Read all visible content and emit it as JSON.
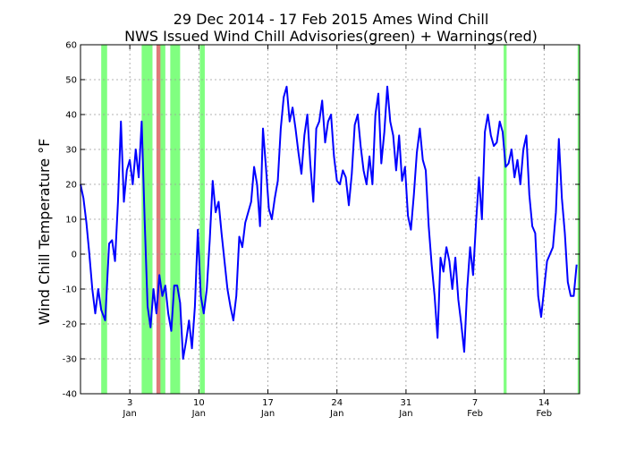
{
  "chart_data": {
    "type": "line",
    "title": "29 Dec 2014 - 17 Feb 2015 Ames Wind Chill",
    "subtitle": "NWS Issued Wind Chill Advisories(green) + Warnings(red)",
    "xlabel": "",
    "ylabel": "Wind Chill Temperature °F",
    "ylim": [
      -40,
      60
    ],
    "yticks": [
      -40,
      -30,
      -20,
      -10,
      0,
      10,
      20,
      30,
      40,
      50,
      60
    ],
    "xlim_days_from_dec29": [
      0,
      50.6
    ],
    "xticks": [
      {
        "day": 5,
        "label1": "3",
        "label2": "Jan"
      },
      {
        "day": 12,
        "label1": "10",
        "label2": "Jan"
      },
      {
        "day": 19,
        "label1": "17",
        "label2": "Jan"
      },
      {
        "day": 26,
        "label1": "24",
        "label2": "Jan"
      },
      {
        "day": 33,
        "label1": "31",
        "label2": "Jan"
      },
      {
        "day": 40,
        "label1": "7",
        "label2": "Feb"
      },
      {
        "day": 47,
        "label1": "14",
        "label2": "Feb"
      }
    ],
    "grid": true,
    "advisories": [
      [
        2.1,
        2.7
      ],
      [
        6.2,
        7.3
      ],
      [
        8.0,
        8.6
      ],
      [
        9.1,
        10.1
      ],
      [
        12.1,
        12.6
      ],
      [
        42.9,
        43.2
      ],
      [
        50.4,
        50.6
      ]
    ],
    "warnings": [
      [
        7.7,
        8.1
      ]
    ],
    "series": [
      {
        "color": "#0000ff",
        "points": [
          [
            0.0,
            20
          ],
          [
            0.3,
            16
          ],
          [
            0.6,
            9
          ],
          [
            0.9,
            0
          ],
          [
            1.2,
            -10
          ],
          [
            1.5,
            -17
          ],
          [
            1.8,
            -10
          ],
          [
            2.1,
            -16
          ],
          [
            2.5,
            -19
          ],
          [
            2.9,
            3
          ],
          [
            3.2,
            4
          ],
          [
            3.5,
            -2
          ],
          [
            3.8,
            15
          ],
          [
            4.1,
            38
          ],
          [
            4.4,
            15
          ],
          [
            4.7,
            24
          ],
          [
            5.0,
            27
          ],
          [
            5.3,
            20
          ],
          [
            5.6,
            30
          ],
          [
            5.9,
            22
          ],
          [
            6.2,
            38
          ],
          [
            6.5,
            10
          ],
          [
            6.8,
            -15
          ],
          [
            7.1,
            -21
          ],
          [
            7.4,
            -10
          ],
          [
            7.7,
            -17
          ],
          [
            8.0,
            -6
          ],
          [
            8.3,
            -12
          ],
          [
            8.6,
            -9
          ],
          [
            8.9,
            -17
          ],
          [
            9.2,
            -22
          ],
          [
            9.5,
            -9
          ],
          [
            9.8,
            -9
          ],
          [
            10.1,
            -14
          ],
          [
            10.4,
            -30
          ],
          [
            10.7,
            -25
          ],
          [
            11.0,
            -19
          ],
          [
            11.3,
            -27
          ],
          [
            11.6,
            -15
          ],
          [
            11.9,
            7
          ],
          [
            12.2,
            -12
          ],
          [
            12.5,
            -17
          ],
          [
            12.8,
            -10
          ],
          [
            13.1,
            4
          ],
          [
            13.4,
            21
          ],
          [
            13.7,
            12
          ],
          [
            14.0,
            15
          ],
          [
            14.3,
            6
          ],
          [
            14.6,
            -2
          ],
          [
            14.9,
            -10
          ],
          [
            15.2,
            -15
          ],
          [
            15.5,
            -19
          ],
          [
            15.8,
            -12
          ],
          [
            16.1,
            5
          ],
          [
            16.4,
            2
          ],
          [
            16.7,
            9
          ],
          [
            17.0,
            12
          ],
          [
            17.3,
            15
          ],
          [
            17.6,
            25
          ],
          [
            17.9,
            20
          ],
          [
            18.2,
            8
          ],
          [
            18.5,
            36
          ],
          [
            18.8,
            25
          ],
          [
            19.1,
            13
          ],
          [
            19.4,
            10
          ],
          [
            19.7,
            16
          ],
          [
            20.0,
            21
          ],
          [
            20.3,
            36
          ],
          [
            20.6,
            45
          ],
          [
            20.9,
            48
          ],
          [
            21.2,
            38
          ],
          [
            21.5,
            42
          ],
          [
            21.8,
            36
          ],
          [
            22.1,
            29
          ],
          [
            22.4,
            23
          ],
          [
            22.7,
            34
          ],
          [
            23.0,
            40
          ],
          [
            23.3,
            26
          ],
          [
            23.6,
            15
          ],
          [
            23.9,
            36
          ],
          [
            24.2,
            38
          ],
          [
            24.5,
            44
          ],
          [
            24.8,
            32
          ],
          [
            25.1,
            38
          ],
          [
            25.4,
            40
          ],
          [
            25.7,
            28
          ],
          [
            26.0,
            21
          ],
          [
            26.3,
            20
          ],
          [
            26.6,
            24
          ],
          [
            26.9,
            22
          ],
          [
            27.2,
            14
          ],
          [
            27.5,
            23
          ],
          [
            27.8,
            37
          ],
          [
            28.1,
            40
          ],
          [
            28.4,
            31
          ],
          [
            28.7,
            24
          ],
          [
            29.0,
            20
          ],
          [
            29.3,
            28
          ],
          [
            29.6,
            20
          ],
          [
            29.9,
            40
          ],
          [
            30.2,
            46
          ],
          [
            30.5,
            26
          ],
          [
            30.8,
            35
          ],
          [
            31.1,
            48
          ],
          [
            31.4,
            38
          ],
          [
            31.7,
            34
          ],
          [
            32.0,
            24
          ],
          [
            32.3,
            34
          ],
          [
            32.6,
            21
          ],
          [
            32.9,
            25
          ],
          [
            33.2,
            11
          ],
          [
            33.5,
            7
          ],
          [
            33.8,
            17
          ],
          [
            34.1,
            29
          ],
          [
            34.4,
            36
          ],
          [
            34.7,
            27
          ],
          [
            35.0,
            24
          ],
          [
            35.3,
            8
          ],
          [
            35.6,
            -3
          ],
          [
            35.9,
            -12
          ],
          [
            36.2,
            -24
          ],
          [
            36.5,
            -1
          ],
          [
            36.8,
            -5
          ],
          [
            37.1,
            2
          ],
          [
            37.4,
            -2
          ],
          [
            37.7,
            -10
          ],
          [
            38.0,
            -1
          ],
          [
            38.3,
            -13
          ],
          [
            38.6,
            -20
          ],
          [
            38.9,
            -28
          ],
          [
            39.2,
            -10
          ],
          [
            39.5,
            2
          ],
          [
            39.8,
            -6
          ],
          [
            40.1,
            9
          ],
          [
            40.4,
            22
          ],
          [
            40.7,
            10
          ],
          [
            41.0,
            35
          ],
          [
            41.3,
            40
          ],
          [
            41.6,
            34
          ],
          [
            41.9,
            31
          ],
          [
            42.2,
            32
          ],
          [
            42.5,
            38
          ],
          [
            42.8,
            35
          ],
          [
            43.1,
            25
          ],
          [
            43.4,
            26
          ],
          [
            43.7,
            30
          ],
          [
            44.0,
            22
          ],
          [
            44.3,
            27
          ],
          [
            44.6,
            20
          ],
          [
            44.9,
            30
          ],
          [
            45.2,
            34
          ],
          [
            45.5,
            17
          ],
          [
            45.8,
            8
          ],
          [
            46.1,
            6
          ],
          [
            46.4,
            -12
          ],
          [
            46.7,
            -18
          ],
          [
            47.0,
            -10
          ],
          [
            47.3,
            -2
          ],
          [
            47.6,
            0
          ],
          [
            47.9,
            2
          ],
          [
            48.2,
            12
          ],
          [
            48.5,
            33
          ],
          [
            48.8,
            16
          ],
          [
            49.1,
            6
          ],
          [
            49.4,
            -8
          ],
          [
            49.7,
            -12
          ],
          [
            50.0,
            -12
          ],
          [
            50.3,
            -3
          ]
        ]
      }
    ]
  }
}
